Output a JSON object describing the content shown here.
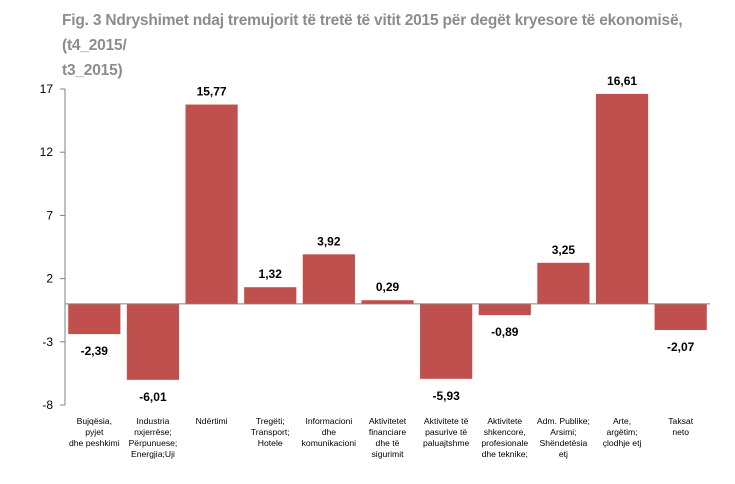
{
  "chart_data": {
    "type": "bar",
    "title": "Fig. 3 Ndryshimet ndaj tremujorit të tretë të vitit 2015 për degët kryesore të ekonomisë, (t4_2015/ t3_2015)",
    "title_lines": [
      "Fig. 3 Ndryshimet ndaj tremujorit të tretë të vitit 2015 për degët kryesore të ekonomisë, (t4_2015/",
      "t3_2015)"
    ],
    "categories": [
      "Bujqësia, pyjet dhe peshkimi",
      "Industria nxjerrëse; Përpunuese; Energjia;Uji",
      "Ndërtimi",
      "Tregëti; Transport; Hotele",
      "Informacioni dhe komunikacioni",
      "Aktivitetet financiare dhe të sigurimit",
      "Aktivitete të pasurive të paluajtshme",
      "Aktivitete shkencore, profesionale dhe teknike;",
      "Adm. Publike; Arsimi; Shëndetësia etj",
      "Arte, argëtim; çlodhje etj",
      "Taksat neto"
    ],
    "category_lines": [
      [
        "Bujqësia,",
        "pyjet",
        "dhe peshkimi"
      ],
      [
        "Industria",
        "nxjerrëse;",
        "Përpunuese;",
        "Energjia;Uji"
      ],
      [
        "Ndërtimi"
      ],
      [
        "Tregëti;",
        "Transport;",
        "Hotele"
      ],
      [
        "Informacioni",
        "dhe",
        "komunikacioni"
      ],
      [
        "Aktivitetet",
        "financiare",
        "dhe të",
        "sigurimit"
      ],
      [
        "Aktivitete të",
        "pasurive të",
        "paluajtshme"
      ],
      [
        "Aktivitete",
        "shkencore,",
        "profesionale",
        "dhe teknike;"
      ],
      [
        "Adm. Publike;",
        "Arsimi;",
        "Shëndetësia",
        "etj"
      ],
      [
        "Arte,",
        "argëtim;",
        "çlodhje etj"
      ],
      [
        "Taksat",
        "neto"
      ]
    ],
    "values": [
      -2.39,
      -6.01,
      15.77,
      1.32,
      3.92,
      0.29,
      -5.93,
      -0.89,
      3.25,
      16.61,
      -2.07
    ],
    "value_labels": [
      "-2,39",
      "-6,01",
      "15,77",
      "1,32",
      "3,92",
      "0,29",
      "-5,93",
      "-0,89",
      "3,25",
      "16,61",
      "-2,07"
    ],
    "y_ticks": [
      17,
      12,
      7,
      2,
      -3,
      -8
    ],
    "ylim": [
      -8,
      17
    ],
    "bar_color": "#c0504d",
    "xlabel": "",
    "ylabel": ""
  }
}
